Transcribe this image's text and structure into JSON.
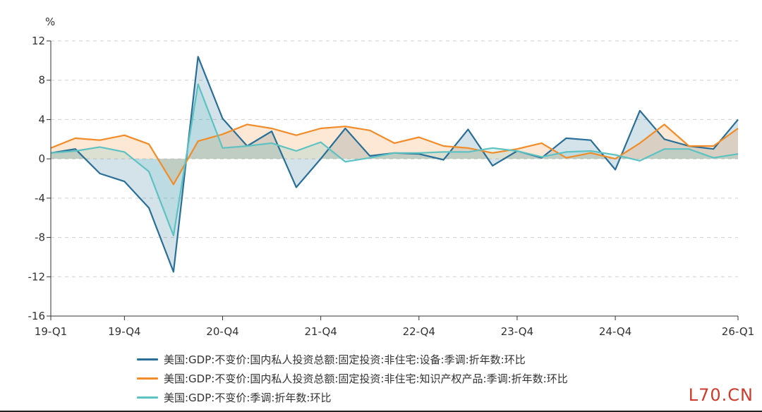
{
  "chart_data": {
    "type": "line",
    "ylabel": "%",
    "ylim": [
      -16,
      12
    ],
    "yticks": [
      -16,
      -12,
      -8,
      -4,
      0,
      4,
      8,
      12
    ],
    "xtick_labels": [
      "19-Q1",
      "19-Q4",
      "20-Q4",
      "21-Q4",
      "22-Q4",
      "23-Q4",
      "24-Q4",
      "26-Q1"
    ],
    "xtick_index": [
      0,
      3,
      7,
      11,
      15,
      19,
      23,
      28
    ],
    "grid": true,
    "legend_position": "bottom",
    "x": [
      "19-Q1",
      "19-Q2",
      "19-Q3",
      "19-Q4",
      "20-Q1",
      "20-Q2",
      "20-Q3",
      "20-Q4",
      "21-Q1",
      "21-Q2",
      "21-Q3",
      "21-Q4",
      "22-Q1",
      "22-Q2",
      "22-Q3",
      "22-Q4",
      "23-Q1",
      "23-Q2",
      "23-Q3",
      "23-Q4",
      "24-Q1",
      "24-Q2",
      "24-Q3",
      "24-Q4",
      "25-Q1",
      "25-Q2",
      "25-Q3",
      "25-Q4",
      "26-Q1"
    ],
    "series": [
      {
        "name": "美国:GDP:不变价:国内私人投资总额:固定投资:非住宅:设备:季调:折年数:环比",
        "color": "#2a6f97",
        "values": [
          0.6,
          1.0,
          -1.5,
          -2.3,
          -5.0,
          -11.5,
          10.4,
          4.1,
          1.3,
          2.8,
          -2.9,
          0.0,
          3.1,
          0.3,
          0.6,
          0.5,
          -0.1,
          3.0,
          -0.7,
          0.8,
          0.1,
          2.1,
          1.9,
          -1.1,
          4.9,
          2.0,
          1.3,
          1.0,
          4.0
        ]
      },
      {
        "name": "美国:GDP:不变价:国内私人投资总额:固定投资:非住宅:知识产权产品:季调:折年数:环比",
        "color": "#f28c28",
        "values": [
          1.1,
          2.1,
          1.9,
          2.4,
          1.5,
          -2.6,
          1.8,
          2.5,
          3.5,
          3.1,
          2.4,
          3.1,
          3.3,
          2.9,
          1.6,
          2.2,
          1.3,
          1.1,
          0.6,
          1.0,
          1.6,
          0.1,
          0.6,
          0.0,
          1.6,
          3.5,
          1.3,
          1.3,
          3.1
        ]
      },
      {
        "name": "美国:GDP:不变价:季调:折年数:环比",
        "color": "#5ec2c2",
        "values": [
          0.6,
          0.8,
          1.2,
          0.7,
          -1.3,
          -7.8,
          7.6,
          1.1,
          1.3,
          1.6,
          0.8,
          1.7,
          -0.3,
          0.1,
          0.6,
          0.6,
          0.7,
          0.7,
          1.1,
          0.8,
          0.2,
          0.7,
          0.8,
          0.4,
          -0.2,
          1.0,
          1.0,
          0.1,
          0.5
        ]
      }
    ]
  },
  "watermark": "L70.CN"
}
